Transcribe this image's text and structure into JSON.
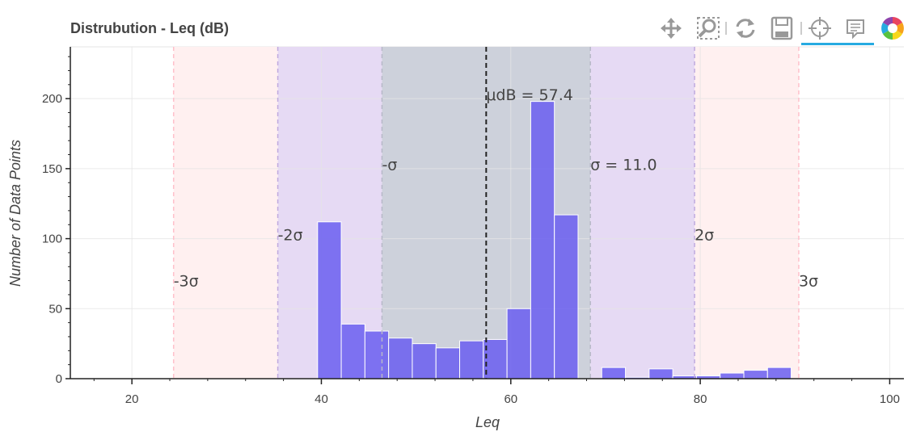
{
  "chart_data": {
    "type": "bar",
    "title": "Distrubution - Leq (dB)",
    "xlabel": "Leq",
    "ylabel": "Number of Data Points",
    "xlim": [
      13.5,
      101.5
    ],
    "ylim": [
      0,
      237
    ],
    "x_ticks": [
      20,
      40,
      60,
      80,
      100
    ],
    "y_ticks": [
      0,
      50,
      100,
      150,
      200
    ],
    "grid": true,
    "bin_width": 2.5,
    "bins": [
      {
        "start": 39.6,
        "count": 112
      },
      {
        "start": 42.1,
        "count": 39
      },
      {
        "start": 44.6,
        "count": 34
      },
      {
        "start": 47.1,
        "count": 29
      },
      {
        "start": 49.6,
        "count": 25
      },
      {
        "start": 52.1,
        "count": 22
      },
      {
        "start": 54.6,
        "count": 27
      },
      {
        "start": 57.1,
        "count": 28
      },
      {
        "start": 59.6,
        "count": 50
      },
      {
        "start": 62.1,
        "count": 198
      },
      {
        "start": 64.6,
        "count": 117
      },
      {
        "start": 67.1,
        "count": 0
      },
      {
        "start": 69.6,
        "count": 8
      },
      {
        "start": 72.1,
        "count": 1
      },
      {
        "start": 74.6,
        "count": 7
      },
      {
        "start": 77.1,
        "count": 2
      },
      {
        "start": 79.6,
        "count": 2
      },
      {
        "start": 82.1,
        "count": 4
      },
      {
        "start": 84.6,
        "count": 6
      },
      {
        "start": 87.1,
        "count": 8
      }
    ],
    "mean": 57.4,
    "sigma": 11.0,
    "bands": [
      {
        "from": 24.4,
        "to": 35.4,
        "color": "#fff0f0",
        "label": "-3σ",
        "label_x": 24.4,
        "label_y": 70
      },
      {
        "from": 35.4,
        "to": 46.4,
        "color": "#e6daf4",
        "label": "-2σ",
        "label_x": 35.4,
        "label_y": 103
      },
      {
        "from": 46.4,
        "to": 68.4,
        "color": "#cdd1db",
        "label": "-σ",
        "label_x": 46.4,
        "label_y": 153
      },
      {
        "from": 68.4,
        "to": 79.4,
        "color": "#e6daf4",
        "label": "σ = 11.0",
        "label_x": 68.4,
        "label_y": 153
      },
      {
        "from": 79.4,
        "to": 90.4,
        "color": "#fff0f0",
        "label": "2σ",
        "label_x": 79.4,
        "label_y": 103
      }
    ],
    "sigma_lines": [
      {
        "x": 24.4,
        "color": "#ffc0cb"
      },
      {
        "x": 35.4,
        "color": "#c0aae0"
      },
      {
        "x": 46.4,
        "color": "#b8b8c8"
      },
      {
        "x": 68.4,
        "color": "#b8b8c8"
      },
      {
        "x": 79.4,
        "color": "#c0aae0"
      },
      {
        "x": 90.4,
        "color": "#ffc0cb"
      }
    ],
    "extra_labels": [
      {
        "text": "3σ",
        "x": 90.4,
        "y": 70
      },
      {
        "text": "μdB = 57.4",
        "x": 57.4,
        "y": 203
      }
    ],
    "bar_color": "#6a5ef0"
  },
  "toolbar": {
    "tools": [
      "pan-icon",
      "box-zoom-icon",
      "reset-icon",
      "save-icon",
      "crosshair-icon",
      "hover-icon",
      "bokeh-logo"
    ],
    "active_color": "#26aae1"
  }
}
